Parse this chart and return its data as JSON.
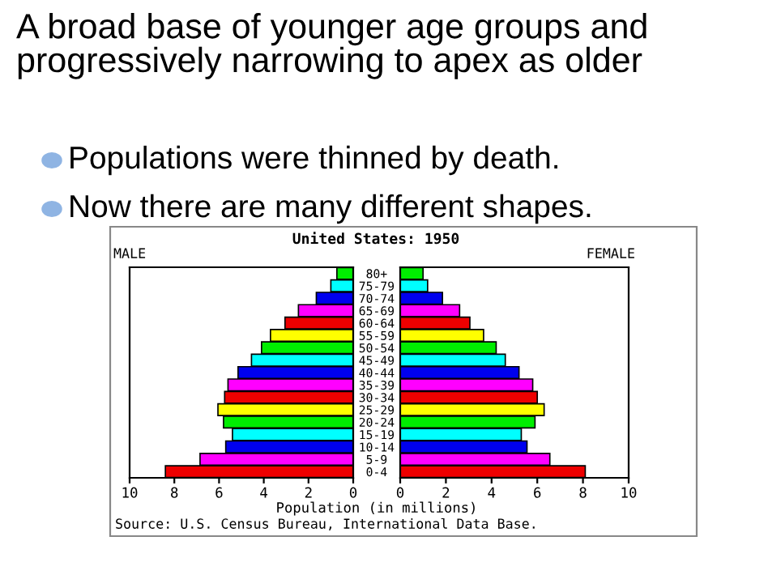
{
  "chart_data": [
    {
      "type": "bar",
      "orientation": "horizontal",
      "title": "United States: 1950",
      "xlabel": "Population (in millions)",
      "annotations": [
        "A broad base of younger age groups and progressively narrowing to apex as older",
        "Populations were thinned by death.",
        "Now there are many different shapes.",
        "Source: U.S. Census Bureau, International Data Base."
      ],
      "categories": [
        "80+",
        "75-79",
        "70-74",
        "65-69",
        "60-64",
        "55-59",
        "50-54",
        "45-49",
        "40-44",
        "35-39",
        "30-34",
        "25-29",
        "20-24",
        "15-19",
        "10-14",
        "5-9",
        "0-4"
      ],
      "colors": [
        "#00ee00",
        "#00ffff",
        "#0000ee",
        "#ff00ff",
        "#ee0000",
        "#ffff00",
        "#00ee00",
        "#00ffff",
        "#0000ee",
        "#ff00ff",
        "#ee0000",
        "#ffff00",
        "#00ee00",
        "#00ffff",
        "#0000ee",
        "#ff00ff",
        "#ee0000"
      ],
      "series": [
        {
          "name": "MALE",
          "values": [
            0.73,
            1.0,
            1.65,
            2.45,
            3.05,
            3.7,
            4.1,
            4.55,
            5.15,
            5.6,
            5.75,
            6.05,
            5.8,
            5.4,
            5.7,
            6.85,
            8.4
          ]
        }
      ],
      "xlim": [
        10,
        0
      ],
      "xticks": [
        10,
        8,
        6,
        4,
        2,
        0
      ],
      "grid": false,
      "legend": false
    },
    {
      "type": "bar",
      "orientation": "horizontal",
      "colors": [
        "#00ee00",
        "#00ffff",
        "#0000ee",
        "#ff00ff",
        "#ee0000",
        "#ffff00",
        "#00ee00",
        "#00ffff",
        "#0000ee",
        "#ff00ff",
        "#ee0000",
        "#ffff00",
        "#00ee00",
        "#00ffff",
        "#0000ee",
        "#ff00ff",
        "#ee0000"
      ],
      "series": [
        {
          "name": "FEMALE",
          "values": [
            1.0,
            1.2,
            1.85,
            2.6,
            3.05,
            3.65,
            4.2,
            4.6,
            5.2,
            5.8,
            6.0,
            6.3,
            5.9,
            5.3,
            5.55,
            6.55,
            8.1
          ]
        }
      ],
      "xlim": [
        0,
        10
      ],
      "xticks": [
        0,
        2,
        4,
        6,
        8,
        10
      ],
      "grid": false,
      "legend": false,
      "tick_labels": "x"
    }
  ]
}
